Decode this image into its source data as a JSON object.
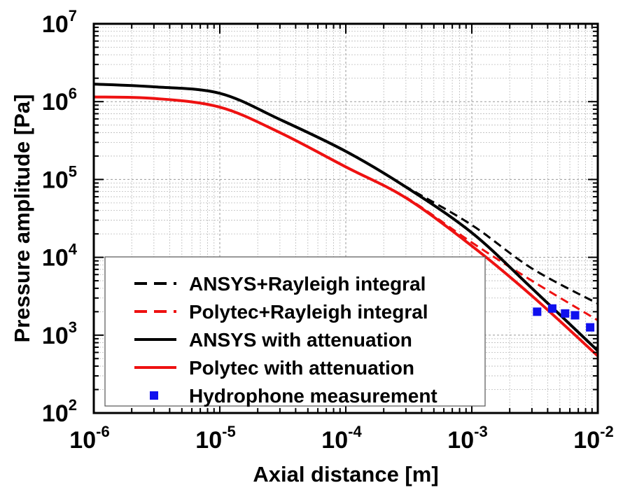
{
  "chart_data": {
    "type": "line",
    "xscale": "log",
    "yscale": "log",
    "xlabel": "Axial distance [m]",
    "ylabel": "Pressure amplitude [Pa]",
    "xlim": [
      1e-06,
      0.01
    ],
    "ylim": [
      100.0,
      10000000.0
    ],
    "grid": true,
    "legend_position": "bottom-left",
    "x_ticks": [
      {
        "base": "10",
        "exp": "-6",
        "value": 1e-06
      },
      {
        "base": "10",
        "exp": "-5",
        "value": 1e-05
      },
      {
        "base": "10",
        "exp": "-4",
        "value": 0.0001
      },
      {
        "base": "10",
        "exp": "-3",
        "value": 0.001
      },
      {
        "base": "10",
        "exp": "-2",
        "value": 0.01
      }
    ],
    "y_ticks": [
      {
        "base": "10",
        "exp": "2",
        "value": 100.0
      },
      {
        "base": "10",
        "exp": "3",
        "value": 1000.0
      },
      {
        "base": "10",
        "exp": "4",
        "value": 10000.0
      },
      {
        "base": "10",
        "exp": "5",
        "value": 100000.0
      },
      {
        "base": "10",
        "exp": "6",
        "value": 1000000.0
      },
      {
        "base": "10",
        "exp": "7",
        "value": 10000000.0
      }
    ],
    "series": [
      {
        "name": "ANSYS+Rayleigh integral",
        "color": "#000000",
        "style": "dashed",
        "x": [
          1e-06,
          3e-06,
          1e-05,
          3e-05,
          0.0001,
          0.0003,
          0.001,
          0.003,
          0.01
        ],
        "y": [
          1680000.0,
          1550000.0,
          1280000.0,
          590000.0,
          230000.0,
          81000.0,
          26000.0,
          7200.0,
          2540.0
        ]
      },
      {
        "name": "Polytec+Rayleigh integral",
        "color": "#ee1111",
        "style": "dashed",
        "x": [
          1e-06,
          3e-06,
          1e-05,
          3e-05,
          0.0001,
          0.0003,
          0.001,
          0.003,
          0.01
        ],
        "y": [
          1150000.0,
          1100000.0,
          850000.0,
          400000.0,
          145000.0,
          59000.0,
          15500.0,
          5000.0,
          1550.0
        ]
      },
      {
        "name": "ANSYS with attenuation",
        "color": "#000000",
        "style": "solid",
        "x": [
          1e-06,
          3e-06,
          1e-05,
          3e-05,
          0.0001,
          0.0003,
          0.001,
          0.003,
          0.01
        ],
        "y": [
          1680000.0,
          1550000.0,
          1280000.0,
          590000.0,
          230000.0,
          80000.0,
          20700.0,
          4000.0,
          630.0
        ]
      },
      {
        "name": "Polytec with attenuation",
        "color": "#ee1111",
        "style": "solid",
        "x": [
          1e-06,
          3e-06,
          1e-05,
          3e-05,
          0.0001,
          0.0003,
          0.001,
          0.003,
          0.01
        ],
        "y": [
          1150000.0,
          1100000.0,
          850000.0,
          400000.0,
          145000.0,
          58000.0,
          14000.0,
          3200.0,
          540.0
        ]
      },
      {
        "name": "Hydrophone measurement",
        "color": "#1010ee",
        "style": "markers",
        "x": [
          0.0033,
          0.00435,
          0.0055,
          0.0066,
          0.0087
        ],
        "y": [
          2000.0,
          2200.0,
          1900.0,
          1800.0,
          1260.0
        ]
      }
    ]
  }
}
